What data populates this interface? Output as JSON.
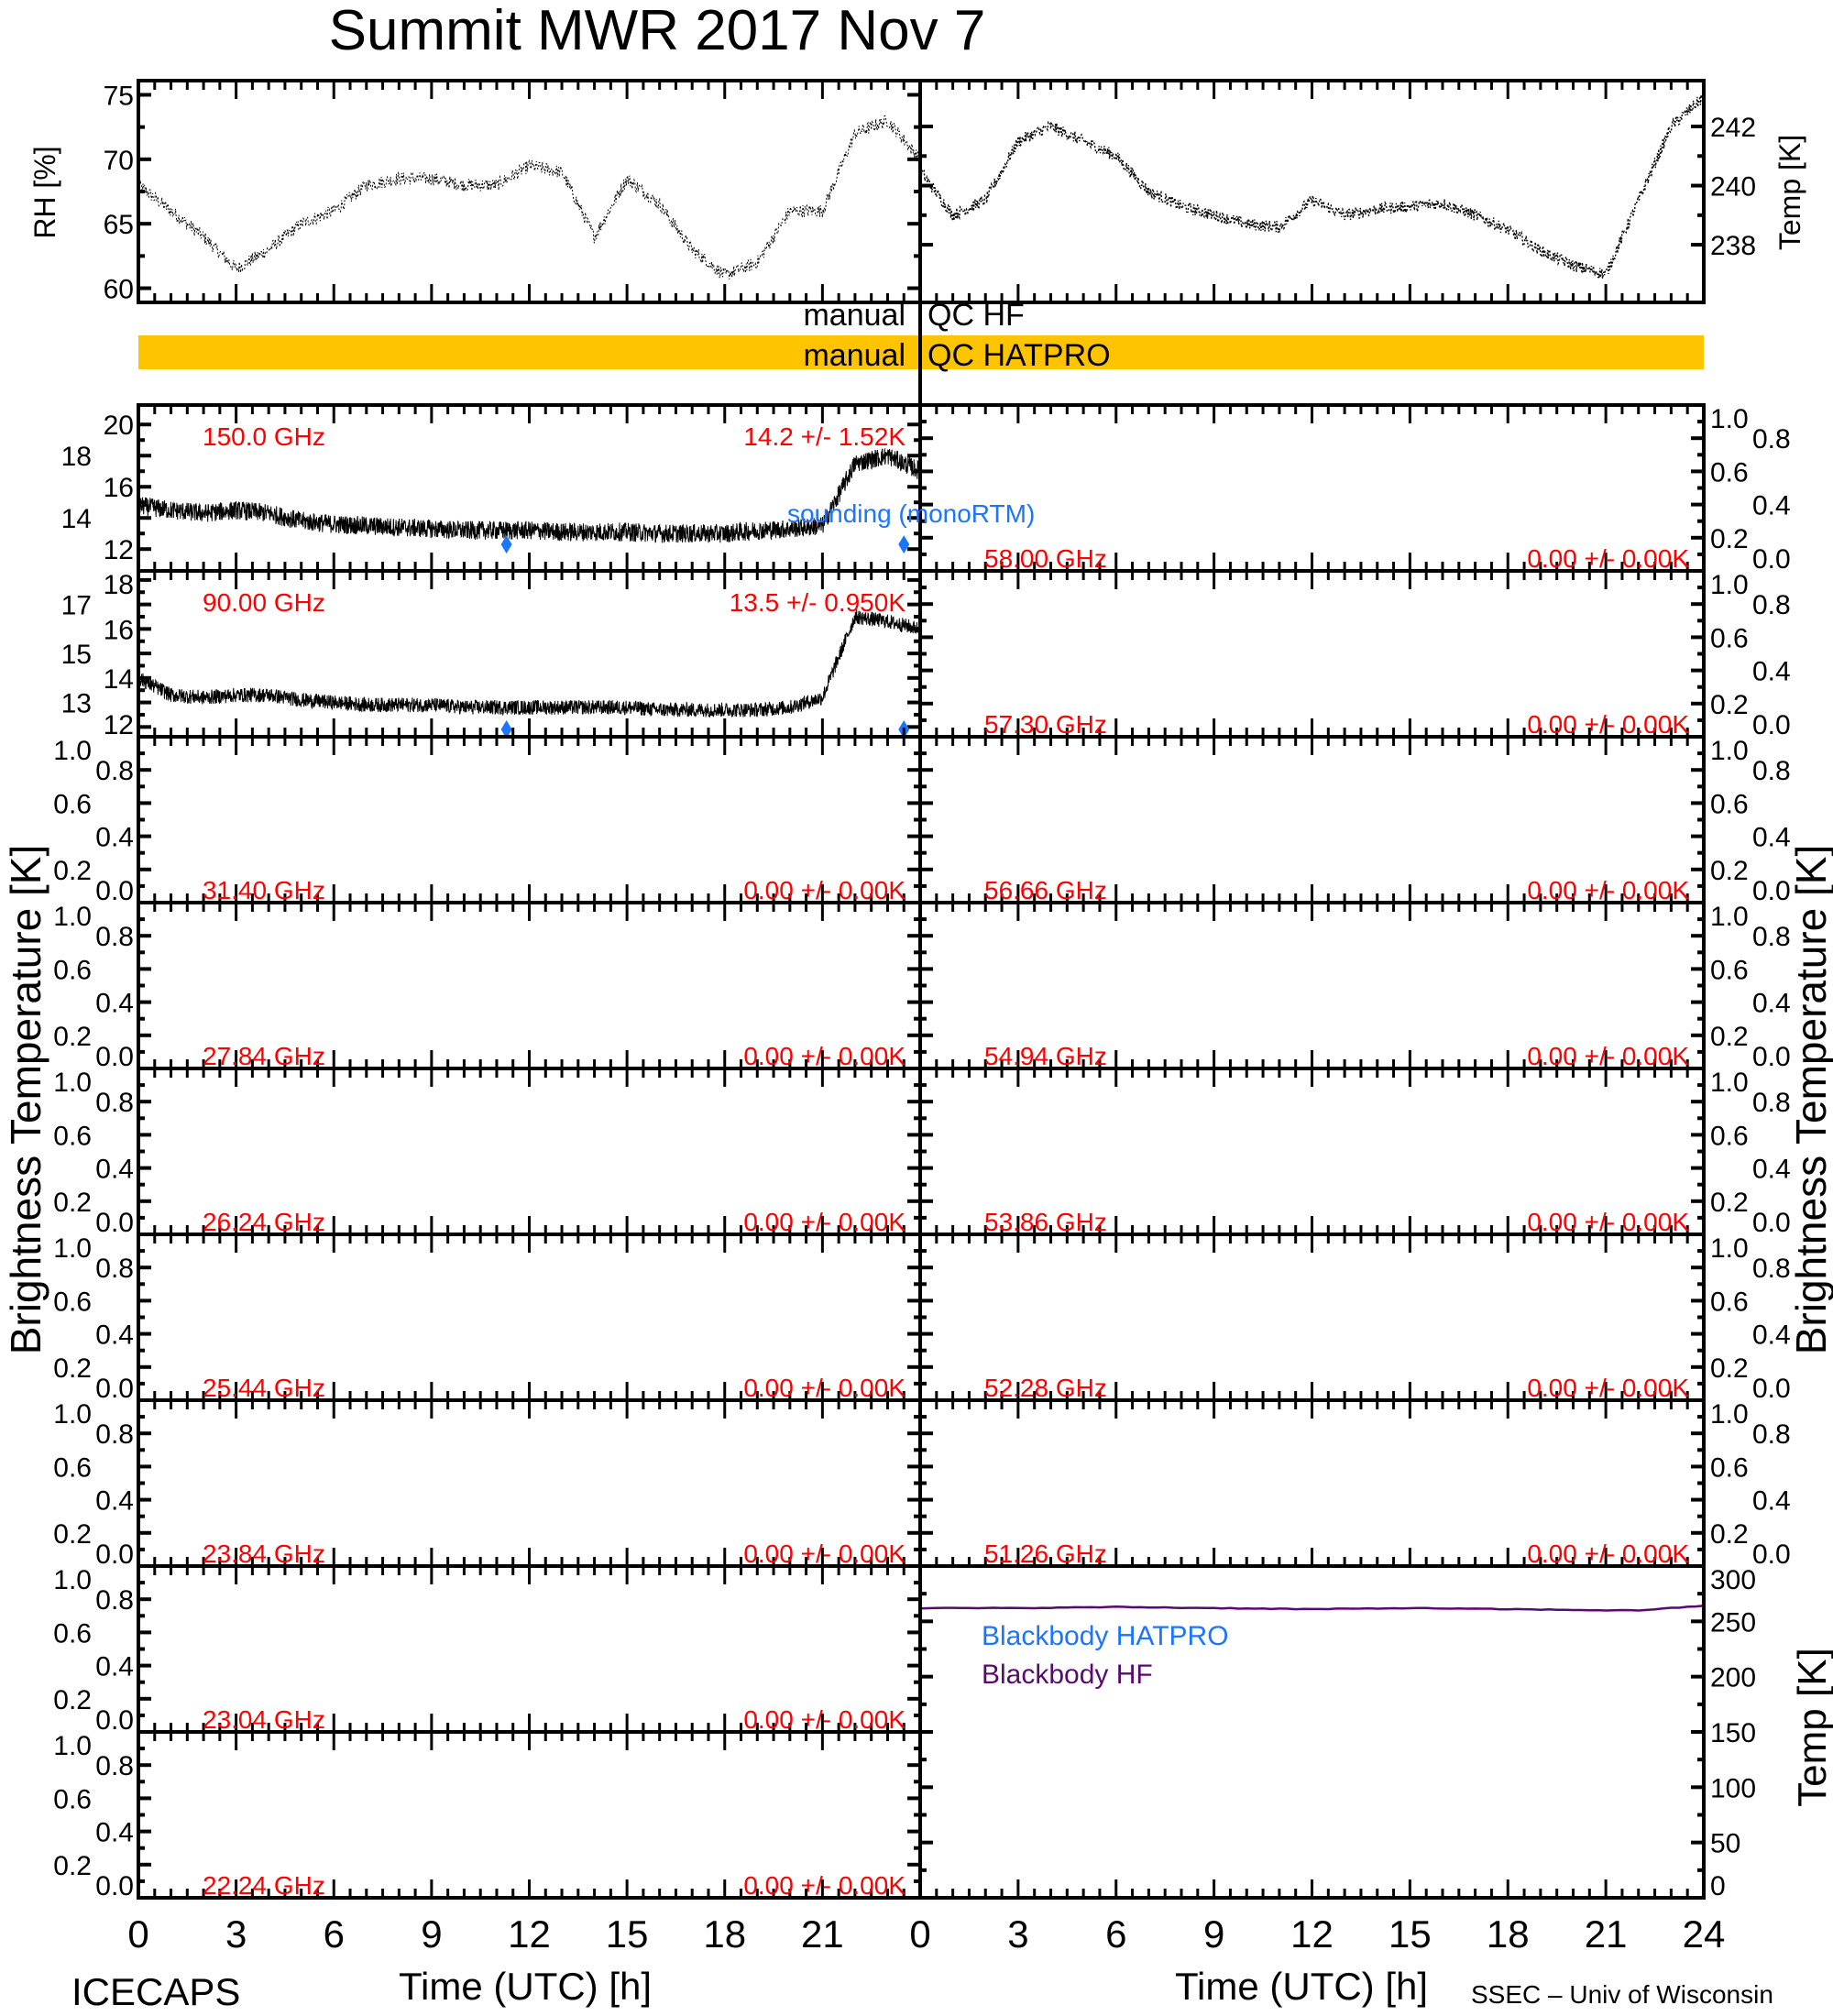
{
  "title": "Summit  MWR  2017  Nov    7",
  "footer": {
    "left_label": "ICECAPS",
    "right_label": "SSEC  –  Univ  of  Wisconsin",
    "xlabel_left": "Time  (UTC)  [h]",
    "xlabel_right": "Time  (UTC)  [h]"
  },
  "qc": {
    "hf_label": "manual  QC  HF",
    "hf_left": "manual",
    "hf_right": "QC  HF",
    "hatpro_left": "manual",
    "hatpro_right": "QC  HATPRO",
    "hatpro_color": "#ffc400"
  },
  "colors": {
    "label": "#ff0000",
    "sounding": "#1a75ff",
    "bb_hatpro": "#1a75ff",
    "bb_hf": "#5a0a6e"
  },
  "chart_data": [
    {
      "type": "line",
      "name": "RH",
      "ylabel": "RH  [%]",
      "xlim": [
        0,
        24
      ],
      "ylim": [
        58.9,
        76.1
      ],
      "yticks": [
        "60",
        "65",
        "70",
        "75"
      ],
      "x": [
        0,
        1,
        2,
        3,
        4,
        5,
        6,
        7,
        8,
        9,
        10,
        11,
        12,
        13,
        14,
        15,
        16,
        17,
        18,
        19,
        20,
        21,
        22,
        23,
        24
      ],
      "values": [
        68,
        66,
        64,
        61.5,
        63,
        65,
        66,
        68,
        68.5,
        68.5,
        68,
        68,
        69.5,
        69,
        64,
        68.5,
        66.5,
        63,
        61,
        62,
        66,
        66,
        72,
        73,
        70
      ]
    },
    {
      "type": "line",
      "name": "Temp",
      "ylabel": "Temp  [K]",
      "xlim": [
        0,
        24
      ],
      "ylim": [
        236.05,
        243.55
      ],
      "yticks": [
        "238",
        "240",
        "242"
      ],
      "x": [
        0,
        1,
        2,
        3,
        4,
        5,
        6,
        7,
        8,
        9,
        10,
        11,
        12,
        13,
        14,
        15,
        16,
        17,
        18,
        19,
        20,
        21,
        22,
        23,
        24
      ],
      "values": [
        240.5,
        239,
        239.5,
        241.5,
        242,
        241.5,
        241,
        239.8,
        239.3,
        239,
        238.7,
        238.6,
        239.5,
        239,
        239.2,
        239.3,
        239.4,
        239,
        238.5,
        237.8,
        237.3,
        237,
        239.5,
        242,
        243
      ]
    },
    {
      "type": "scatter",
      "name": "Brightness Temperature",
      "ylabel": "Brightness  Temperature  [K]",
      "xlabel": "Time  (UTC)  [h]",
      "xticks": [
        "0",
        "3",
        "6",
        "9",
        "12",
        "15",
        "18",
        "21",
        "24"
      ],
      "default_yticks": [
        "0.0",
        "0.2",
        "0.4",
        "0.6",
        "0.8",
        "1.0"
      ],
      "sounding_label": "sounding  (monoRTM)",
      "channels_left": [
        {
          "freq": "150.0 GHz",
          "stats": "14.2 +/-   1.52K",
          "ylim": [
            10.6,
            21.25
          ],
          "yticks": [
            "12",
            "14",
            "16",
            "18",
            "20"
          ],
          "x": [
            0,
            1,
            2,
            3,
            4,
            5,
            6,
            7,
            8,
            9,
            10,
            11,
            12,
            13,
            14,
            15,
            16,
            17,
            18,
            19,
            20,
            21,
            22,
            23,
            24
          ],
          "values": [
            14.8,
            14.5,
            14.3,
            14.5,
            14.3,
            13.8,
            13.6,
            13.5,
            13.4,
            13.3,
            13.2,
            13.2,
            13.2,
            13.1,
            13.1,
            13.1,
            13.0,
            13.0,
            13.0,
            13.2,
            13.3,
            13.5,
            17.5,
            18,
            17
          ],
          "noise": 0.6,
          "soundings": [
            [
              11.3,
              12.3
            ],
            [
              23.5,
              12.3
            ]
          ]
        },
        {
          "freq": "90.00 GHz",
          "stats": "13.5 +/-  0.950K",
          "ylim": [
            11.6,
            18.37
          ],
          "yticks": [
            "12",
            "13",
            "14",
            "15",
            "16",
            "17",
            "18"
          ],
          "x": [
            0,
            1,
            2,
            3,
            4,
            5,
            6,
            7,
            8,
            9,
            10,
            11,
            12,
            13,
            14,
            15,
            16,
            17,
            18,
            19,
            20,
            21,
            22,
            23,
            24
          ],
          "values": [
            14,
            13.3,
            13.2,
            13.3,
            13.3,
            13.1,
            13.0,
            12.9,
            12.9,
            12.9,
            12.8,
            12.8,
            12.8,
            12.8,
            12.8,
            12.8,
            12.7,
            12.7,
            12.7,
            12.7,
            12.8,
            13.2,
            16.5,
            16.3,
            16
          ],
          "noise": 0.3,
          "soundings": [
            [
              11.3,
              11.8
            ],
            [
              23.5,
              11.8
            ]
          ]
        },
        {
          "freq": "31.40 GHz",
          "stats": "0.00 +/-  0.00K"
        },
        {
          "freq": "27.84 GHz",
          "stats": "0.00 +/-  0.00K"
        },
        {
          "freq": "26.24 GHz",
          "stats": "0.00 +/-  0.00K"
        },
        {
          "freq": "25.44 GHz",
          "stats": "0.00 +/-  0.00K"
        },
        {
          "freq": "23.84 GHz",
          "stats": "0.00 +/-  0.00K"
        },
        {
          "freq": "23.04 GHz",
          "stats": "0.00 +/-  0.00K"
        },
        {
          "freq": "22.24 GHz",
          "stats": "0.00 +/-  0.00K"
        }
      ],
      "channels_right": [
        {
          "freq": "58.00 GHz",
          "stats": "0.00 +/-  0.00K"
        },
        {
          "freq": "57.30 GHz",
          "stats": "0.00 +/-  0.00K"
        },
        {
          "freq": "56.66 GHz",
          "stats": "0.00 +/-  0.00K"
        },
        {
          "freq": "54.94 GHz",
          "stats": "0.00 +/-  0.00K"
        },
        {
          "freq": "53.86 GHz",
          "stats": "0.00 +/-  0.00K"
        },
        {
          "freq": "52.28 GHz",
          "stats": "0.00 +/-  0.00K"
        },
        {
          "freq": "51.26 GHz",
          "stats": "0.00 +/-  0.00K"
        }
      ]
    },
    {
      "type": "line",
      "name": "Blackbody",
      "ylabel": "Temp  [K]",
      "xlim": [
        0,
        24
      ],
      "ylim": [
        0,
        300
      ],
      "yticks": [
        "0",
        "50",
        "100",
        "150",
        "200",
        "250",
        "300"
      ],
      "series": [
        {
          "name": "Blackbody  HATPRO",
          "x": [
            0,
            24
          ],
          "values": [
            0,
            0
          ]
        },
        {
          "name": "Blackbody  HF",
          "x": [
            0,
            3,
            6,
            9,
            12,
            15,
            18,
            21,
            22,
            24
          ],
          "values": [
            262,
            262,
            263,
            262,
            261,
            262,
            261,
            260,
            260,
            264
          ]
        }
      ]
    }
  ]
}
